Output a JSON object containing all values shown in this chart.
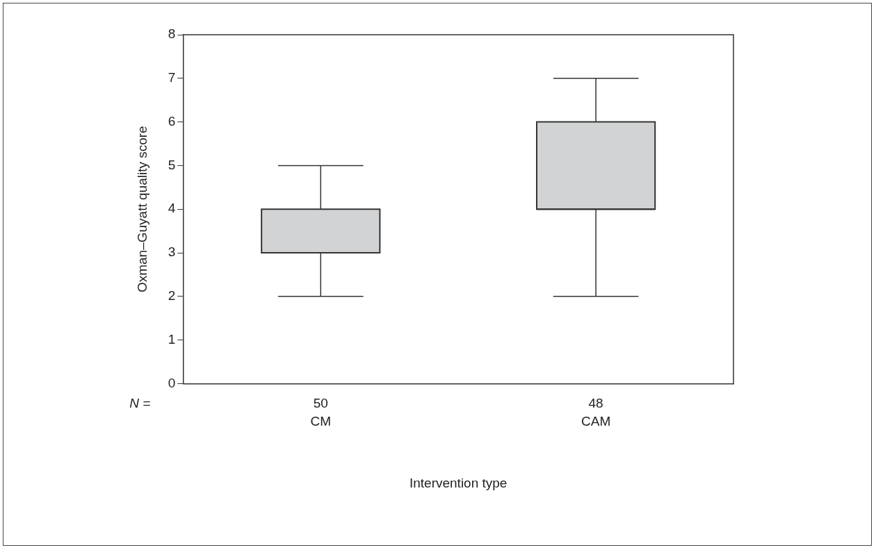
{
  "chart_data": {
    "type": "box",
    "xlabel": "Intervention type",
    "ylabel": "Oxman–Guyatt quality score",
    "categories": [
      "CM",
      "CAM"
    ],
    "boxes": [
      {
        "low": 2,
        "q1": 3,
        "median": 3,
        "q3": 4,
        "high": 5
      },
      {
        "low": 2,
        "q1": 4,
        "median": 4,
        "q3": 6,
        "high": 7
      }
    ],
    "color": "#d1d3d4",
    "ylim": [
      0,
      8
    ],
    "yticks": [
      0,
      1,
      2,
      3,
      4,
      5,
      6,
      7,
      8
    ],
    "grid": false,
    "annotations": [
      "N =",
      "50",
      "48"
    ]
  }
}
